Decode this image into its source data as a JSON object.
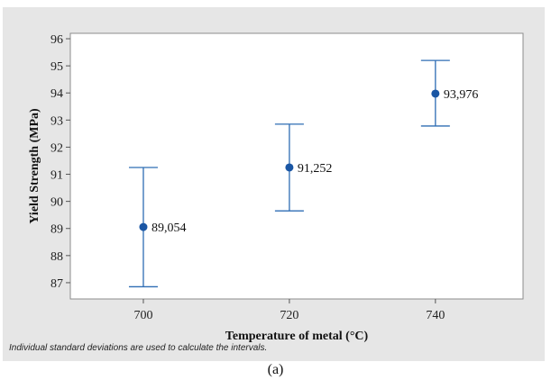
{
  "chart_data": {
    "type": "scatter",
    "subtype": "interval-plot",
    "xlabel": "Temperature of metal (°C)",
    "ylabel": "Yield Strength (MPa)",
    "ylim": [
      86.4,
      96.2
    ],
    "xlim": [
      690,
      752
    ],
    "y_ticks": [
      87,
      88,
      89,
      90,
      91,
      92,
      93,
      94,
      95,
      96
    ],
    "categories": [
      "700",
      "720",
      "740"
    ],
    "x": [
      700,
      720,
      740
    ],
    "series": [
      {
        "values": [
          89.054,
          91.252,
          93.976
        ],
        "lower": [
          86.85,
          89.65,
          92.78
        ],
        "upper": [
          91.25,
          92.85,
          95.2
        ],
        "labels": [
          "89,054",
          "91,252",
          "93,976"
        ]
      }
    ],
    "grid": false,
    "colors": {
      "marker": "#1a56a4",
      "interval": "#2e6db4",
      "plot_bg": "#ffffff",
      "panel_bg": "#e6e6e6"
    }
  },
  "footnote": "Individual standard deviations are used to calculate the intervals.",
  "caption": "(a)"
}
